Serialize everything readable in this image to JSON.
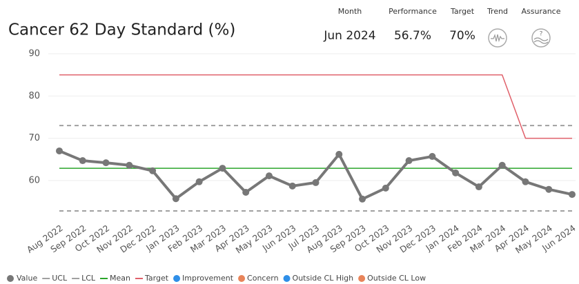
{
  "chart_data": {
    "type": "line",
    "title": "Cancer 62 Day Standard (%)",
    "kpis": [
      {
        "label": "Month",
        "value": "Jun 2024"
      },
      {
        "label": "Performance",
        "value": "56.7%"
      },
      {
        "label": "Target",
        "value": "70%"
      },
      {
        "label": "Trend"
      },
      {
        "label": "Assurance"
      }
    ],
    "categories": [
      "Aug 2022",
      "Sep 2022",
      "Oct 2022",
      "Nov 2022",
      "Dec 2022",
      "Jan 2023",
      "Feb 2023",
      "Mar 2023",
      "Apr 2023",
      "May 2023",
      "Jun 2023",
      "Jul 2023",
      "Aug 2023",
      "Sep 2023",
      "Oct 2023",
      "Nov 2023",
      "Dec 2023",
      "Jan 2024",
      "Feb 2024",
      "Mar 2024",
      "Apr 2024",
      "May 2024",
      "Jun 2024"
    ],
    "series": [
      {
        "name": "Value",
        "color": "#777777",
        "marker": true,
        "values": [
          67.0,
          64.7,
          64.2,
          63.6,
          62.3,
          55.7,
          59.7,
          62.9,
          57.2,
          61.1,
          58.7,
          59.5,
          66.2,
          55.6,
          58.2,
          64.7,
          65.7,
          61.8,
          58.5,
          63.6,
          59.7,
          57.9,
          56.7
        ]
      },
      {
        "name": "UCL",
        "color": "#a0a0a0",
        "dashed": true,
        "values": [
          73,
          73,
          73,
          73,
          73,
          73,
          73,
          73,
          73,
          73,
          73,
          73,
          73,
          73,
          73,
          73,
          73,
          73,
          73,
          73,
          73,
          73,
          73
        ]
      },
      {
        "name": "LCL",
        "color": "#a0a0a0",
        "dashed": true,
        "values": [
          52.8,
          52.8,
          52.8,
          52.8,
          52.8,
          52.8,
          52.8,
          52.8,
          52.8,
          52.8,
          52.8,
          52.8,
          52.8,
          52.8,
          52.8,
          52.8,
          52.8,
          52.8,
          52.8,
          52.8,
          52.8,
          52.8,
          52.8
        ]
      },
      {
        "name": "Mean",
        "color": "#2aa52a",
        "values": [
          62.9,
          62.9,
          62.9,
          62.9,
          62.9,
          62.9,
          62.9,
          62.9,
          62.9,
          62.9,
          62.9,
          62.9,
          62.9,
          62.9,
          62.9,
          62.9,
          62.9,
          62.9,
          62.9,
          62.9,
          62.9,
          62.9,
          62.9
        ]
      },
      {
        "name": "Target",
        "color": "#e0606a",
        "values": [
          85,
          85,
          85,
          85,
          85,
          85,
          85,
          85,
          85,
          85,
          85,
          85,
          85,
          85,
          85,
          85,
          85,
          85,
          85,
          85,
          70,
          70,
          70
        ]
      }
    ],
    "marker_legend": [
      {
        "name": "Improvement",
        "color": "#2f8fe8"
      },
      {
        "name": "Concern",
        "color": "#e8845a"
      },
      {
        "name": "Outside CL High",
        "color": "#2f8fe8"
      },
      {
        "name": "Outside CL Low",
        "color": "#e8845a"
      }
    ],
    "ylim": [
      51,
      90
    ],
    "yticks": [
      60,
      70,
      80,
      90
    ],
    "grid": true
  }
}
